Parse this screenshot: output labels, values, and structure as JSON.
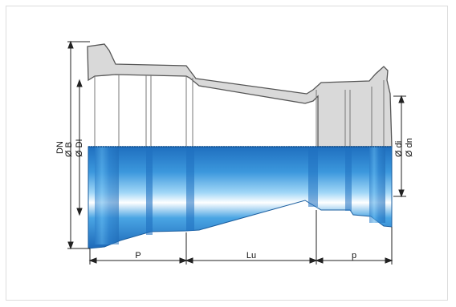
{
  "labels": {
    "dn": "DN",
    "ob": "Ø B",
    "odi_upper": "Ø DI",
    "odi_lower": "Ø di",
    "odn": "Ø dn",
    "p_upper": "P",
    "lu": "Lu",
    "p_lower": "p"
  },
  "colors": {
    "section_fill": "#d9d9d9",
    "outline": "#555555",
    "pipe_blue": "#2e86d3",
    "pipe_light": "#bfe4fb",
    "dimension": "#222222"
  }
}
